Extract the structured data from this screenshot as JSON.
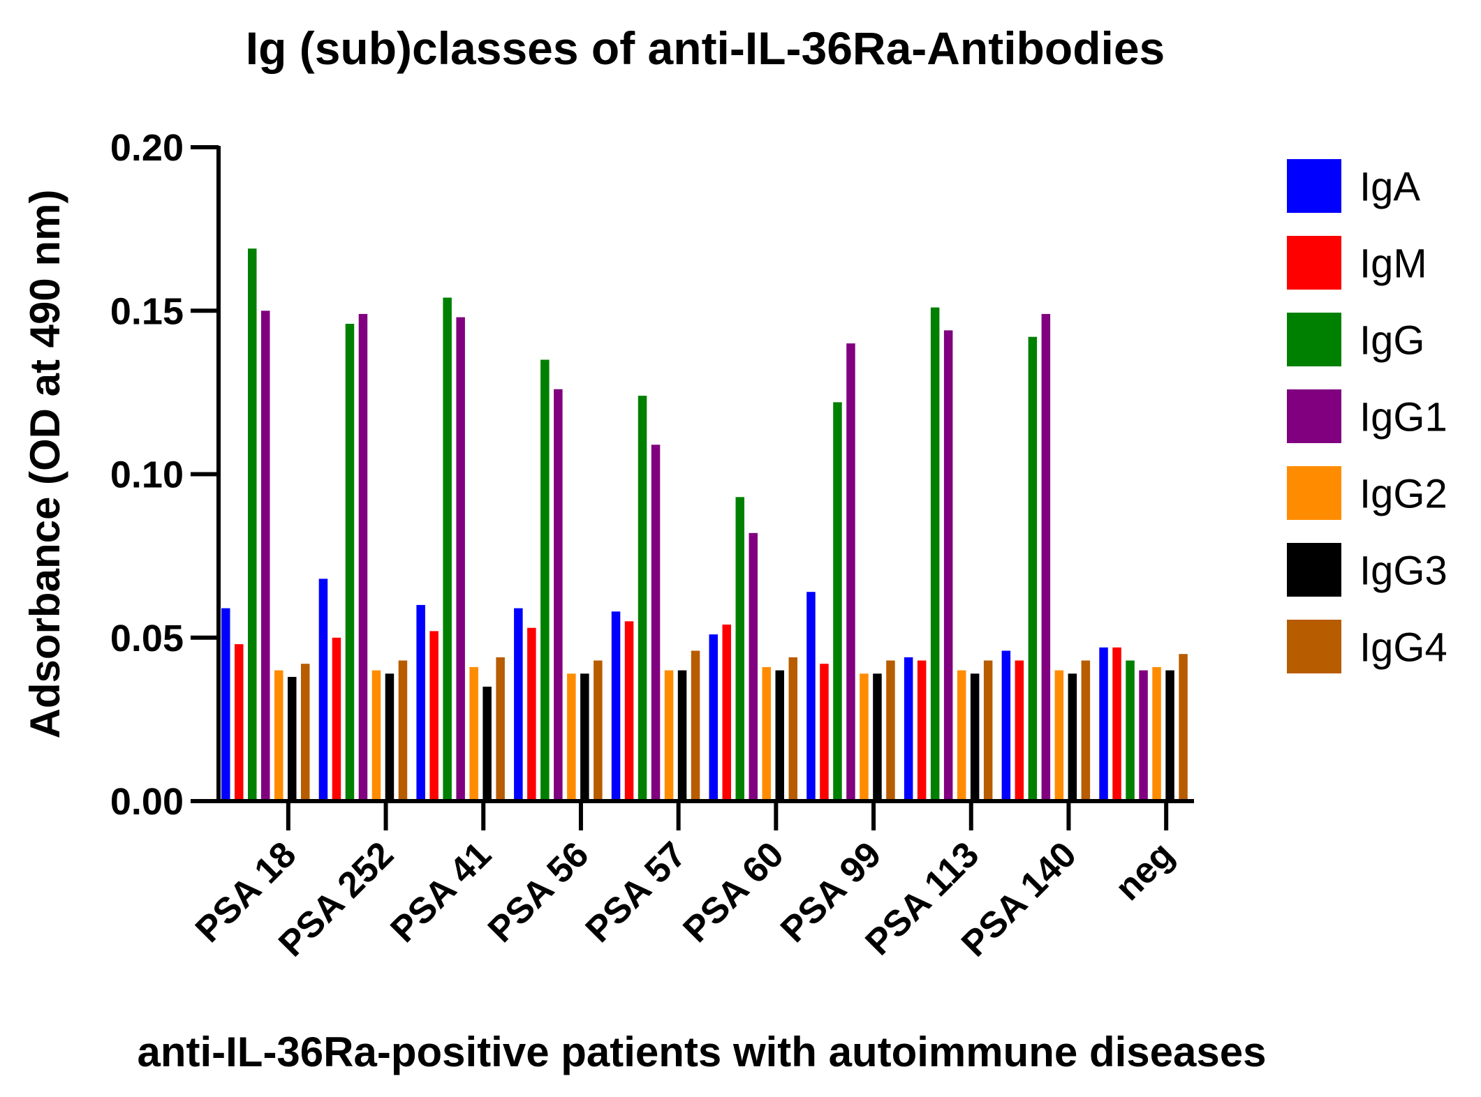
{
  "chart_data": {
    "type": "bar",
    "title": "Ig (sub)classes of anti-IL-36Ra-Antibodies",
    "xlabel": "anti-IL-36Ra-positive patients with autoimmune diseases",
    "ylabel": "Adsorbance (OD at 490 nm)",
    "ylim": [
      0,
      0.2
    ],
    "yticks": [
      "0.00",
      "0.05",
      "0.10",
      "0.15",
      "0.20"
    ],
    "grid": false,
    "legend_position": "right",
    "categories": [
      "PSA 18",
      "PSA 252",
      "PSA 41",
      "PSA 56",
      "PSA 57",
      "PSA 60",
      "PSA 99",
      "PSA 113",
      "PSA 140",
      "neg"
    ],
    "series": [
      {
        "name": "IgA",
        "color": "#0000ff",
        "values": [
          0.059,
          0.068,
          0.06,
          0.059,
          0.058,
          0.051,
          0.064,
          0.044,
          0.046,
          0.047
        ]
      },
      {
        "name": "IgM",
        "color": "#ff0000",
        "values": [
          0.048,
          0.05,
          0.052,
          0.053,
          0.055,
          0.054,
          0.042,
          0.043,
          0.043,
          0.047
        ]
      },
      {
        "name": "IgG",
        "color": "#008000",
        "values": [
          0.169,
          0.146,
          0.154,
          0.135,
          0.124,
          0.093,
          0.122,
          0.151,
          0.142,
          0.043
        ]
      },
      {
        "name": "IgG1",
        "color": "#800080",
        "values": [
          0.15,
          0.149,
          0.148,
          0.126,
          0.109,
          0.082,
          0.14,
          0.144,
          0.149,
          0.04
        ]
      },
      {
        "name": "IgG2",
        "color": "#ff8c00",
        "values": [
          0.04,
          0.04,
          0.041,
          0.039,
          0.04,
          0.041,
          0.039,
          0.04,
          0.04,
          0.041
        ]
      },
      {
        "name": "IgG3",
        "color": "#000000",
        "values": [
          0.038,
          0.039,
          0.035,
          0.039,
          0.04,
          0.04,
          0.039,
          0.039,
          0.039,
          0.04
        ]
      },
      {
        "name": "IgG4",
        "color": "#b85c00",
        "values": [
          0.042,
          0.043,
          0.044,
          0.043,
          0.046,
          0.044,
          0.043,
          0.043,
          0.043,
          0.045
        ]
      }
    ]
  }
}
